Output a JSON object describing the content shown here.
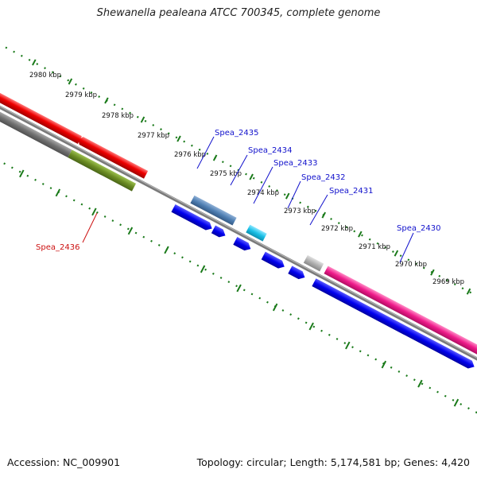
{
  "title": "Shewanella pealeana ATCC 700345, complete genome",
  "footer": {
    "accession": "Accession: NC_009901",
    "summary": "Topology: circular; Length: 5,174,581 bp; Genes: 4,420"
  },
  "scale_labels": [
    "2980 kbp",
    "2979 kbp",
    "2978 kbp",
    "2977 kbp",
    "2976 kbp",
    "2975 kbp",
    "2974 kbp",
    "2973 kbp",
    "2972 kbp",
    "2971 kbp",
    "2970 kbp",
    "2969 kbp"
  ],
  "genes": [
    {
      "name": "Spea_2435",
      "color": "#1111cc"
    },
    {
      "name": "Spea_2434",
      "color": "#1111cc"
    },
    {
      "name": "Spea_2433",
      "color": "#1111cc"
    },
    {
      "name": "Spea_2432",
      "color": "#1111cc"
    },
    {
      "name": "Spea_2431",
      "color": "#1111cc"
    },
    {
      "name": "Spea_2430",
      "color": "#1111cc"
    },
    {
      "name": "Spea_2436",
      "color": "#cc1111"
    }
  ],
  "colors": {
    "backbone": "#808080",
    "ticks": "#1a7a1a",
    "cds_blue": "#0000ee",
    "red": "#ee0000",
    "gray": "#707070",
    "olive": "#6b8c23",
    "steelblue": "#4f7fb3",
    "cyan": "#19bfe6",
    "lightgray": "#b0b0b0",
    "magenta": "#ee1a8a"
  }
}
